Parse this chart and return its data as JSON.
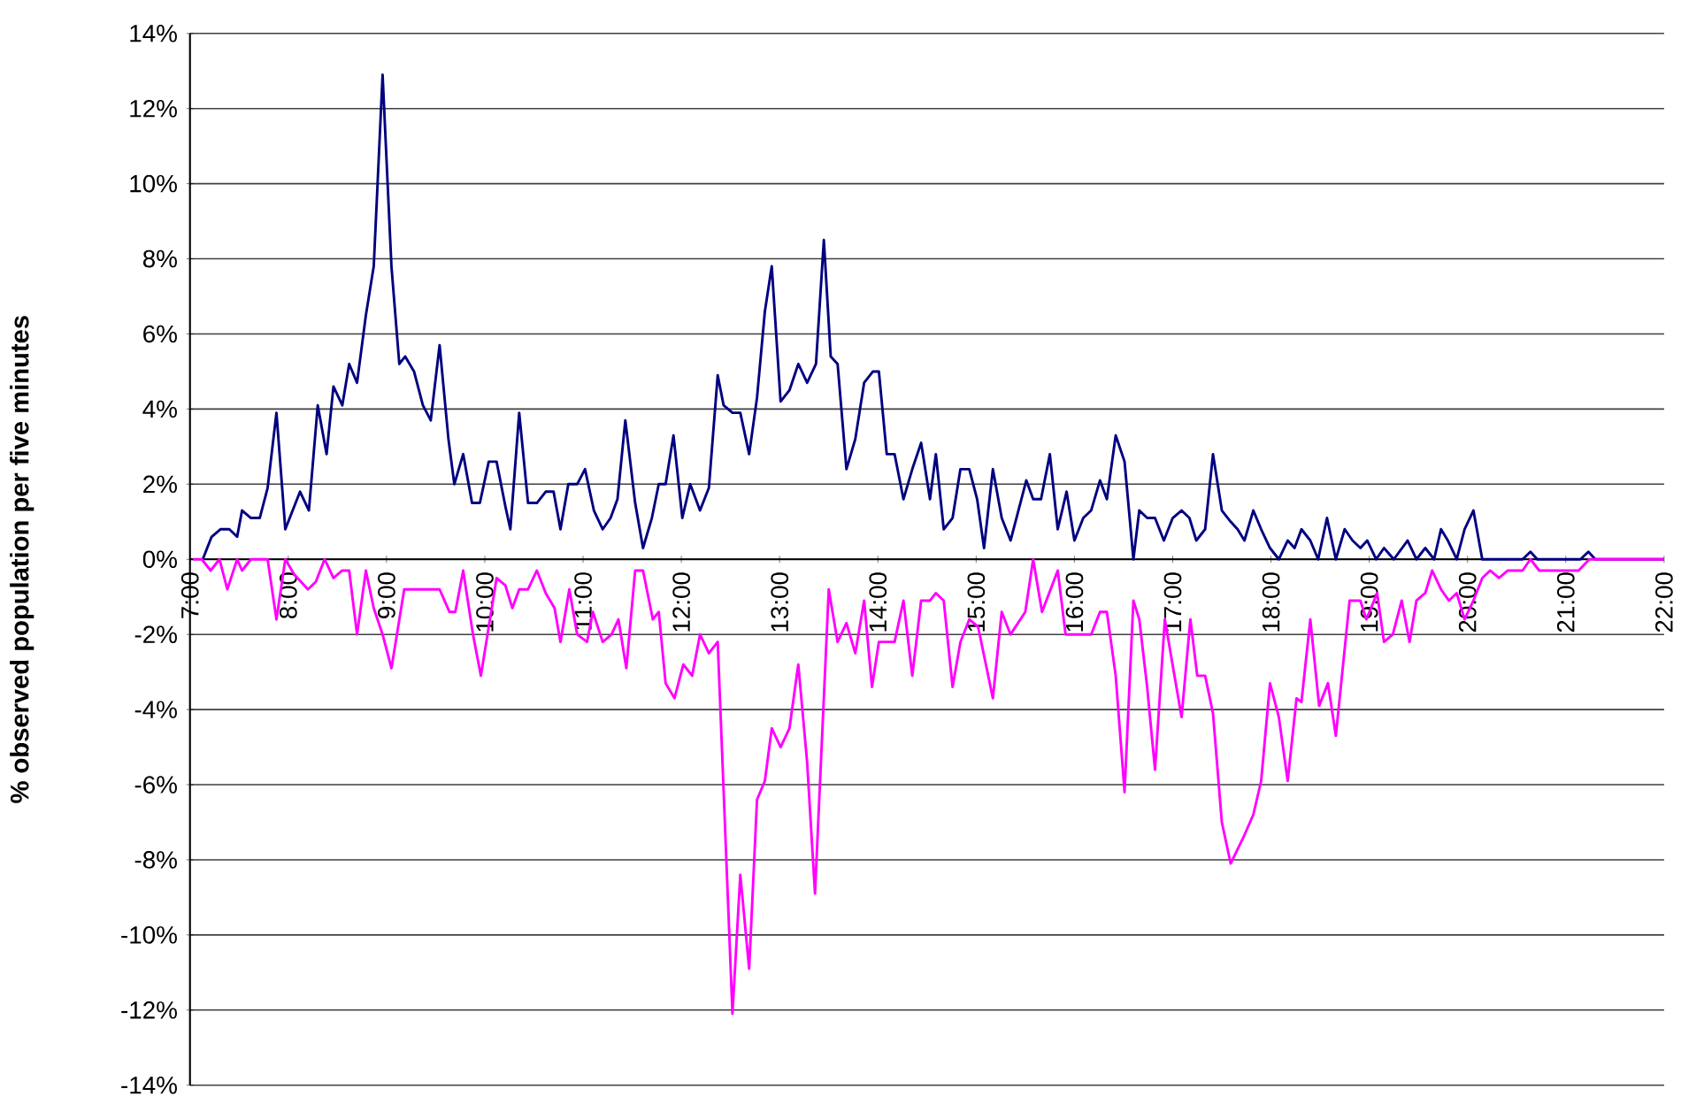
{
  "chart_data": {
    "type": "line",
    "ylabel": "% observed population per five minutes",
    "xlim": [
      7,
      22
    ],
    "xticks": [
      {
        "value": 7,
        "label": "7:00"
      },
      {
        "value": 8,
        "label": "8:00"
      },
      {
        "value": 9,
        "label": "9:00"
      },
      {
        "value": 10,
        "label": "10:00"
      },
      {
        "value": 11,
        "label": "11:00"
      },
      {
        "value": 12,
        "label": "12:00"
      },
      {
        "value": 13,
        "label": "13:00"
      },
      {
        "value": 14,
        "label": "14:00"
      },
      {
        "value": 15,
        "label": "15:00"
      },
      {
        "value": 16,
        "label": "16:00"
      },
      {
        "value": 17,
        "label": "17:00"
      },
      {
        "value": 18,
        "label": "18:00"
      },
      {
        "value": 19,
        "label": "19:00"
      },
      {
        "value": 20,
        "label": "20:00"
      },
      {
        "value": 21,
        "label": "21:00"
      },
      {
        "value": 22,
        "label": "22:00"
      }
    ],
    "ylim": [
      -14,
      14
    ],
    "yticks": [
      {
        "value": -14,
        "label": "-14%"
      },
      {
        "value": -12,
        "label": "-12%"
      },
      {
        "value": -10,
        "label": "-10%"
      },
      {
        "value": -8,
        "label": "-8%"
      },
      {
        "value": -6,
        "label": "-6%"
      },
      {
        "value": -4,
        "label": "-4%"
      },
      {
        "value": -2,
        "label": "-2%"
      },
      {
        "value": 0,
        "label": "0%"
      },
      {
        "value": 2,
        "label": "2%"
      },
      {
        "value": 4,
        "label": "4%"
      },
      {
        "value": 6,
        "label": "6%"
      },
      {
        "value": 8,
        "label": "8%"
      },
      {
        "value": 10,
        "label": "10%"
      },
      {
        "value": 12,
        "label": "12%"
      },
      {
        "value": 14,
        "label": "14%"
      }
    ],
    "grid": "y",
    "series": [
      {
        "color": "#000080",
        "x": [
          7.13,
          7.22,
          7.31,
          7.4,
          7.48,
          7.53,
          7.62,
          7.71,
          7.79,
          7.88,
          7.97,
          8.12,
          8.21,
          8.3,
          8.39,
          8.46,
          8.55,
          8.62,
          8.7,
          8.79,
          8.87,
          8.96,
          9.05,
          9.13,
          9.19,
          9.28,
          9.37,
          9.45,
          9.54,
          9.63,
          9.69,
          9.78,
          9.87,
          9.95,
          10.04,
          10.12,
          10.21,
          10.26,
          10.35,
          10.44,
          10.53,
          10.62,
          10.7,
          10.77,
          10.85,
          10.94,
          11.02,
          11.11,
          11.2,
          11.28,
          11.35,
          11.43,
          11.53,
          11.61,
          11.7,
          11.77,
          11.84,
          11.92,
          12.01,
          12.09,
          12.19,
          12.28,
          12.37,
          12.43,
          12.52,
          12.6,
          12.69,
          12.77,
          12.85,
          12.92,
          13.01,
          13.1,
          13.19,
          13.28,
          13.37,
          13.45,
          13.52,
          13.59,
          13.68,
          13.77,
          13.86,
          13.95,
          14.01,
          14.09,
          14.17,
          14.26,
          14.35,
          14.44,
          14.53,
          14.59,
          14.67,
          14.76,
          14.84,
          14.93,
          15.01,
          15.08,
          15.17,
          15.26,
          15.35,
          15.43,
          15.51,
          15.58,
          15.66,
          15.75,
          15.83,
          15.92,
          16.0,
          16.09,
          16.17,
          16.26,
          16.33,
          16.42,
          16.51,
          16.6,
          16.66,
          16.74,
          16.82,
          16.91,
          17.0,
          17.09,
          17.17,
          17.24,
          17.33,
          17.41,
          17.5,
          17.59,
          17.66,
          17.73,
          17.82,
          17.9,
          17.99,
          18.08,
          18.17,
          18.24,
          18.31,
          18.4,
          18.48,
          18.57,
          18.66,
          18.75,
          18.83,
          18.91,
          18.98,
          19.07,
          19.15,
          19.25,
          19.39,
          19.48,
          19.57,
          19.66,
          19.73,
          19.8,
          19.89,
          19.97,
          20.06,
          20.15,
          20.56,
          20.64,
          20.71,
          21.15,
          21.23,
          21.3,
          22
        ],
        "values": [
          0,
          0.6,
          0.8,
          0.8,
          0.6,
          1.3,
          1.1,
          1.1,
          1.9,
          3.9,
          0.8,
          1.8,
          1.3,
          4.1,
          2.8,
          4.6,
          4.1,
          5.2,
          4.7,
          6.5,
          7.8,
          12.9,
          7.8,
          5.2,
          5.4,
          5.0,
          4.1,
          3.7,
          5.7,
          3.2,
          2.0,
          2.8,
          1.5,
          1.5,
          2.6,
          2.6,
          1.4,
          0.8,
          3.9,
          1.5,
          1.5,
          1.8,
          1.8,
          0.8,
          2.0,
          2.0,
          2.4,
          1.3,
          0.8,
          1.1,
          1.6,
          3.7,
          1.5,
          0.3,
          1.1,
          2.0,
          2.0,
          3.3,
          1.1,
          2.0,
          1.3,
          1.9,
          4.9,
          4.1,
          3.9,
          3.9,
          2.8,
          4.3,
          6.6,
          7.8,
          4.2,
          4.5,
          5.2,
          4.7,
          5.2,
          8.5,
          5.4,
          5.2,
          2.4,
          3.2,
          4.7,
          5.0,
          5.0,
          2.8,
          2.8,
          1.6,
          2.4,
          3.1,
          1.6,
          2.8,
          0.8,
          1.1,
          2.4,
          2.4,
          1.6,
          0.3,
          2.4,
          1.1,
          0.5,
          1.3,
          2.1,
          1.6,
          1.6,
          2.8,
          0.8,
          1.8,
          0.5,
          1.1,
          1.3,
          2.1,
          1.6,
          3.3,
          2.6,
          0,
          1.3,
          1.1,
          1.1,
          0.5,
          1.1,
          1.3,
          1.1,
          0.5,
          0.8,
          2.8,
          1.3,
          1.0,
          0.8,
          0.5,
          1.3,
          0.8,
          0.3,
          0,
          0.5,
          0.3,
          0.8,
          0.5,
          0,
          1.1,
          0,
          0.8,
          0.5,
          0.3,
          0.5,
          0,
          0.3,
          0,
          0.5,
          0,
          0.3,
          0,
          0.8,
          0.5,
          0,
          0.8,
          1.3,
          0,
          0,
          0.2,
          0,
          0,
          0.2,
          0,
          0
        ]
      },
      {
        "color": "#ff00ff",
        "x": [
          7.03,
          7.12,
          7.21,
          7.3,
          7.38,
          7.48,
          7.53,
          7.62,
          7.79,
          7.88,
          7.97,
          8.06,
          8.2,
          8.28,
          8.37,
          8.46,
          8.55,
          8.62,
          8.7,
          8.79,
          8.87,
          8.96,
          9.05,
          9.18,
          9.54,
          9.64,
          9.7,
          9.78,
          9.88,
          9.96,
          10.12,
          10.21,
          10.28,
          10.35,
          10.44,
          10.53,
          10.62,
          10.71,
          10.77,
          10.86,
          10.94,
          11.04,
          11.1,
          11.2,
          11.29,
          11.36,
          11.44,
          11.53,
          11.61,
          11.71,
          11.77,
          11.84,
          11.93,
          12.02,
          12.11,
          12.19,
          12.28,
          12.37,
          12.52,
          12.6,
          12.69,
          12.77,
          12.85,
          12.92,
          13.01,
          13.1,
          13.19,
          13.28,
          13.36,
          13.5,
          13.59,
          13.68,
          13.77,
          13.86,
          13.94,
          14.01,
          14.17,
          14.26,
          14.35,
          14.44,
          14.53,
          14.59,
          14.67,
          14.76,
          14.84,
          14.93,
          15.02,
          15.17,
          15.26,
          15.35,
          15.5,
          15.58,
          15.67,
          15.83,
          15.91,
          16.17,
          16.26,
          16.33,
          16.42,
          16.51,
          16.6,
          16.66,
          16.74,
          16.82,
          16.92,
          17.09,
          17.18,
          17.25,
          17.33,
          17.41,
          17.5,
          17.59,
          17.72,
          17.82,
          17.9,
          17.99,
          18.08,
          18.17,
          18.26,
          18.31,
          18.4,
          18.49,
          18.58,
          18.66,
          18.8,
          18.91,
          18.97,
          19.08,
          19.15,
          19.24,
          19.33,
          19.41,
          19.48,
          19.57,
          19.64,
          19.73,
          19.81,
          19.89,
          19.97,
          20.06,
          20.15,
          20.23,
          20.32,
          20.41,
          20.56,
          20.64,
          20.73,
          21.13,
          21.24,
          22
        ],
        "values": [
          0,
          0,
          -0.3,
          0,
          -0.8,
          0,
          -0.3,
          0,
          0,
          -1.6,
          0,
          -0.4,
          -0.8,
          -0.6,
          0,
          -0.5,
          -0.3,
          -0.3,
          -2.0,
          -0.3,
          -1.3,
          -2.0,
          -2.9,
          -0.8,
          -0.8,
          -1.4,
          -1.4,
          -0.3,
          -2.0,
          -3.1,
          -0.5,
          -0.7,
          -1.3,
          -0.8,
          -0.8,
          -0.3,
          -0.9,
          -1.3,
          -2.2,
          -0.8,
          -2.0,
          -2.2,
          -1.4,
          -2.2,
          -2.0,
          -1.6,
          -2.9,
          -0.3,
          -0.3,
          -1.6,
          -1.4,
          -3.3,
          -3.7,
          -2.8,
          -3.1,
          -2.0,
          -2.5,
          -2.2,
          -12.1,
          -8.4,
          -10.9,
          -6.4,
          -5.9,
          -4.5,
          -5.0,
          -4.5,
          -2.8,
          -5.4,
          -8.9,
          -0.8,
          -2.2,
          -1.7,
          -2.5,
          -1.1,
          -3.4,
          -2.2,
          -2.2,
          -1.1,
          -3.1,
          -1.1,
          -1.1,
          -0.9,
          -1.1,
          -3.4,
          -2.2,
          -1.6,
          -1.8,
          -3.7,
          -1.4,
          -2.0,
          -1.4,
          0,
          -1.4,
          -0.3,
          -2.0,
          -2.0,
          -1.4,
          -1.4,
          -3.1,
          -6.2,
          -1.1,
          -1.6,
          -3.4,
          -5.6,
          -1.6,
          -4.2,
          -1.6,
          -3.1,
          -3.1,
          -4.1,
          -7.0,
          -8.1,
          -7.4,
          -6.8,
          -5.9,
          -3.3,
          -4.2,
          -5.9,
          -3.7,
          -3.8,
          -1.6,
          -3.9,
          -3.3,
          -4.7,
          -1.1,
          -1.1,
          -1.6,
          -0.9,
          -2.2,
          -2.0,
          -1.1,
          -2.2,
          -1.1,
          -0.9,
          -0.3,
          -0.8,
          -1.1,
          -0.9,
          -1.6,
          -1.1,
          -0.5,
          -0.3,
          -0.5,
          -0.3,
          -0.3,
          0,
          -0.3,
          -0.3,
          0,
          0
        ]
      }
    ]
  }
}
